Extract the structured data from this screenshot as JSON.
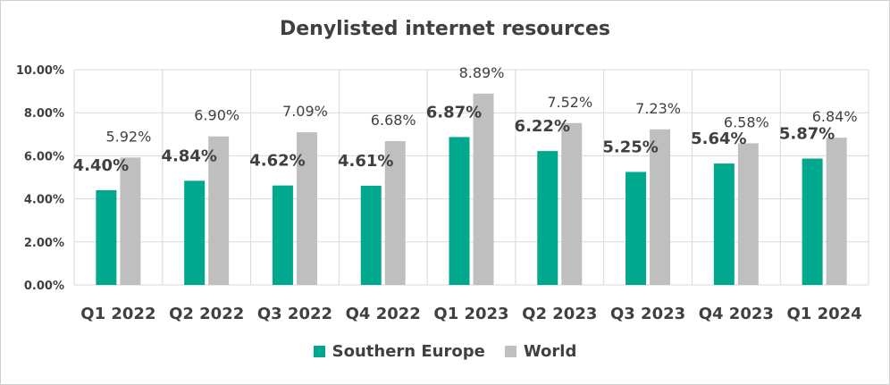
{
  "chart_data": {
    "type": "bar",
    "title": "Denylisted internet resources",
    "categories": [
      "Q1 2022",
      "Q2 2022",
      "Q3 2022",
      "Q4 2022",
      "Q1 2023",
      "Q2 2023",
      "Q3 2023",
      "Q4 2023",
      "Q1 2024"
    ],
    "series": [
      {
        "name": "Southern Europe",
        "color": "#00a88e",
        "values": [
          4.4,
          4.84,
          4.62,
          4.61,
          6.87,
          6.22,
          5.25,
          5.64,
          5.87
        ],
        "labels": [
          "4.40%",
          "4.84%",
          "4.62%",
          "4.61%",
          "6.87%",
          "6.22%",
          "5.25%",
          "5.64%",
          "5.87%"
        ]
      },
      {
        "name": "World",
        "color": "#bfbfbf",
        "values": [
          5.92,
          6.9,
          7.09,
          6.68,
          8.89,
          7.52,
          7.23,
          6.58,
          6.84
        ],
        "labels": [
          "5.92%",
          "6.90%",
          "7.09%",
          "6.68%",
          "8.89%",
          "7.52%",
          "7.23%",
          "6.58%",
          "6.84%"
        ]
      }
    ],
    "ylim": [
      0,
      10
    ],
    "yticks": [
      "0.00%",
      "2.00%",
      "4.00%",
      "6.00%",
      "8.00%",
      "10.00%"
    ],
    "grid": true,
    "legend_position": "bottom"
  }
}
